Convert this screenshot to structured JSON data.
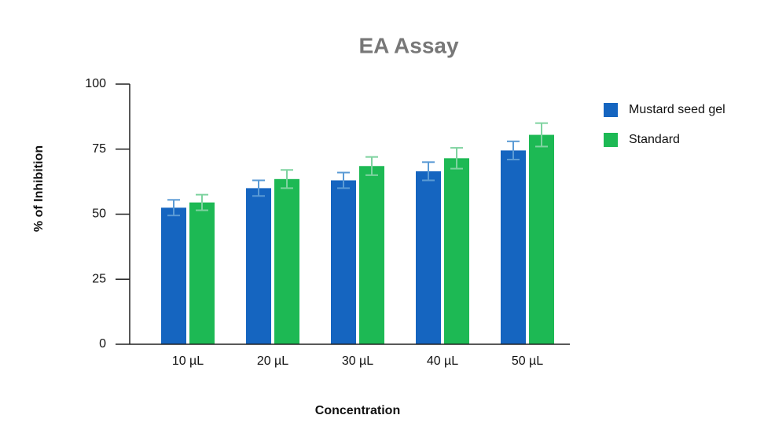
{
  "chart_data": {
    "type": "bar",
    "title": "EA Assay",
    "x_label": "Concentration",
    "y_label": "% of Inhibition",
    "categories": [
      "10 µL",
      "20 µL",
      "30 µL",
      "40 µL",
      "50 µL"
    ],
    "series": [
      {
        "name": "Mustard seed gel",
        "color": "#1565c0",
        "error_color": "#5b9bd5",
        "values": [
          52.5,
          60,
          63,
          66.5,
          74.5
        ],
        "errors": [
          3,
          3,
          3,
          3.5,
          3.5
        ]
      },
      {
        "name": "Standard",
        "color": "#1db954",
        "error_color": "#7fd3a0",
        "values": [
          54.5,
          63.5,
          68.5,
          71.5,
          80.5
        ],
        "errors": [
          3,
          3.5,
          3.5,
          4,
          4.5
        ]
      }
    ],
    "ylim": [
      0,
      100
    ],
    "yticks": [
      0,
      25,
      50,
      75,
      100
    ],
    "grid": false,
    "legend": "right"
  }
}
